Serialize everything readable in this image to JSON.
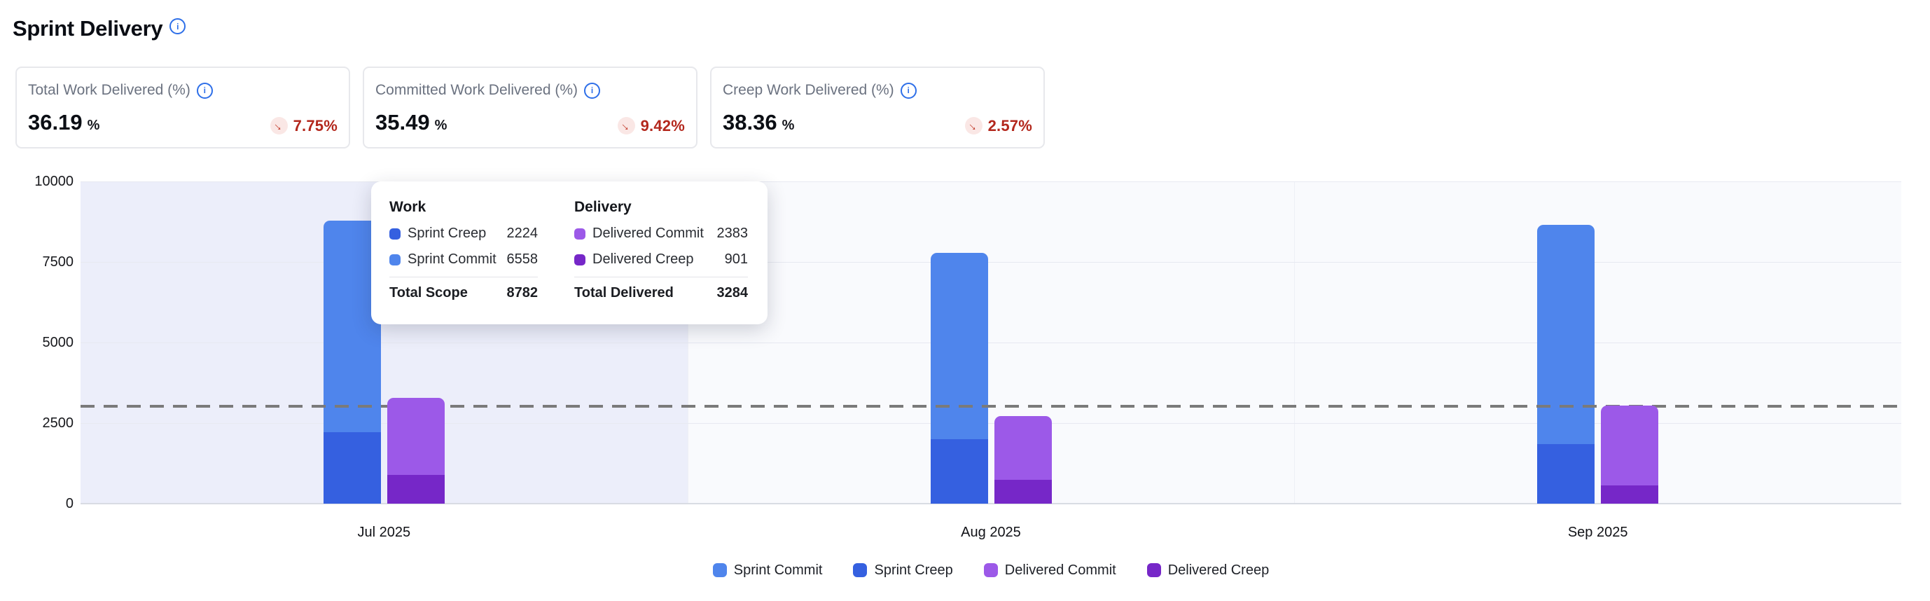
{
  "page": {
    "title": "Sprint Delivery"
  },
  "icons": {
    "info": "i",
    "trend_down": "→"
  },
  "kpi_cards": [
    {
      "title": "Total Work Delivered (%)",
      "value": "36.19",
      "unit": "%",
      "delta": "7.75%",
      "trend": "down"
    },
    {
      "title": "Committed Work Delivered (%)",
      "value": "35.49",
      "unit": "%",
      "delta": "9.42%",
      "trend": "down"
    },
    {
      "title": "Creep Work Delivered (%)",
      "value": "38.36",
      "unit": "%",
      "delta": "2.57%",
      "trend": "down"
    }
  ],
  "tooltip": {
    "work": {
      "header": "Work",
      "rows": [
        {
          "label": "Sprint Creep",
          "value": "2224",
          "color": "#3560e0"
        },
        {
          "label": "Sprint Commit",
          "value": "6558",
          "color": "#4f85ec"
        }
      ],
      "total_label": "Total Scope",
      "total_value": "8782"
    },
    "delivery": {
      "header": "Delivery",
      "rows": [
        {
          "label": "Delivered Commit",
          "value": "2383",
          "color": "#9c59e8"
        },
        {
          "label": "Delivered Creep",
          "value": "901",
          "color": "#7627c8"
        }
      ],
      "total_label": "Total Delivered",
      "total_value": "3284"
    }
  },
  "chart_data": {
    "type": "bar",
    "stacked": true,
    "categories": [
      "Jul 2025",
      "Aug 2025",
      "Sep 2025"
    ],
    "series": [
      {
        "name": "Sprint Commit",
        "stack": "work",
        "stack_index": 1,
        "color": "#4f85ec",
        "values": [
          6558,
          5780,
          6800
        ]
      },
      {
        "name": "Sprint Creep",
        "stack": "work",
        "stack_index": 0,
        "color": "#3560e0",
        "values": [
          2224,
          2000,
          1850
        ]
      },
      {
        "name": "Delivered Commit",
        "stack": "delivery",
        "stack_index": 1,
        "color": "#9c59e8",
        "values": [
          2383,
          1980,
          2480
        ]
      },
      {
        "name": "Delivered Creep",
        "stack": "delivery",
        "stack_index": 0,
        "color": "#7627c8",
        "values": [
          901,
          740,
          570
        ]
      }
    ],
    "ylim": [
      0,
      10000
    ],
    "yticks": [
      0,
      2500,
      5000,
      7500,
      10000
    ],
    "reference_line": {
      "value": 3018,
      "style": "dashed",
      "meaning": "average total delivered"
    },
    "highlighted_category": "Jul 2025",
    "legend_position": "bottom",
    "grid": true,
    "colors": {
      "plot_bg": "#f9fafd",
      "highlight_band": "#eceefa",
      "gridline": "#e7e9f1",
      "axis_line": "#d9dce3",
      "reference_line": "#7a7a7a"
    }
  }
}
